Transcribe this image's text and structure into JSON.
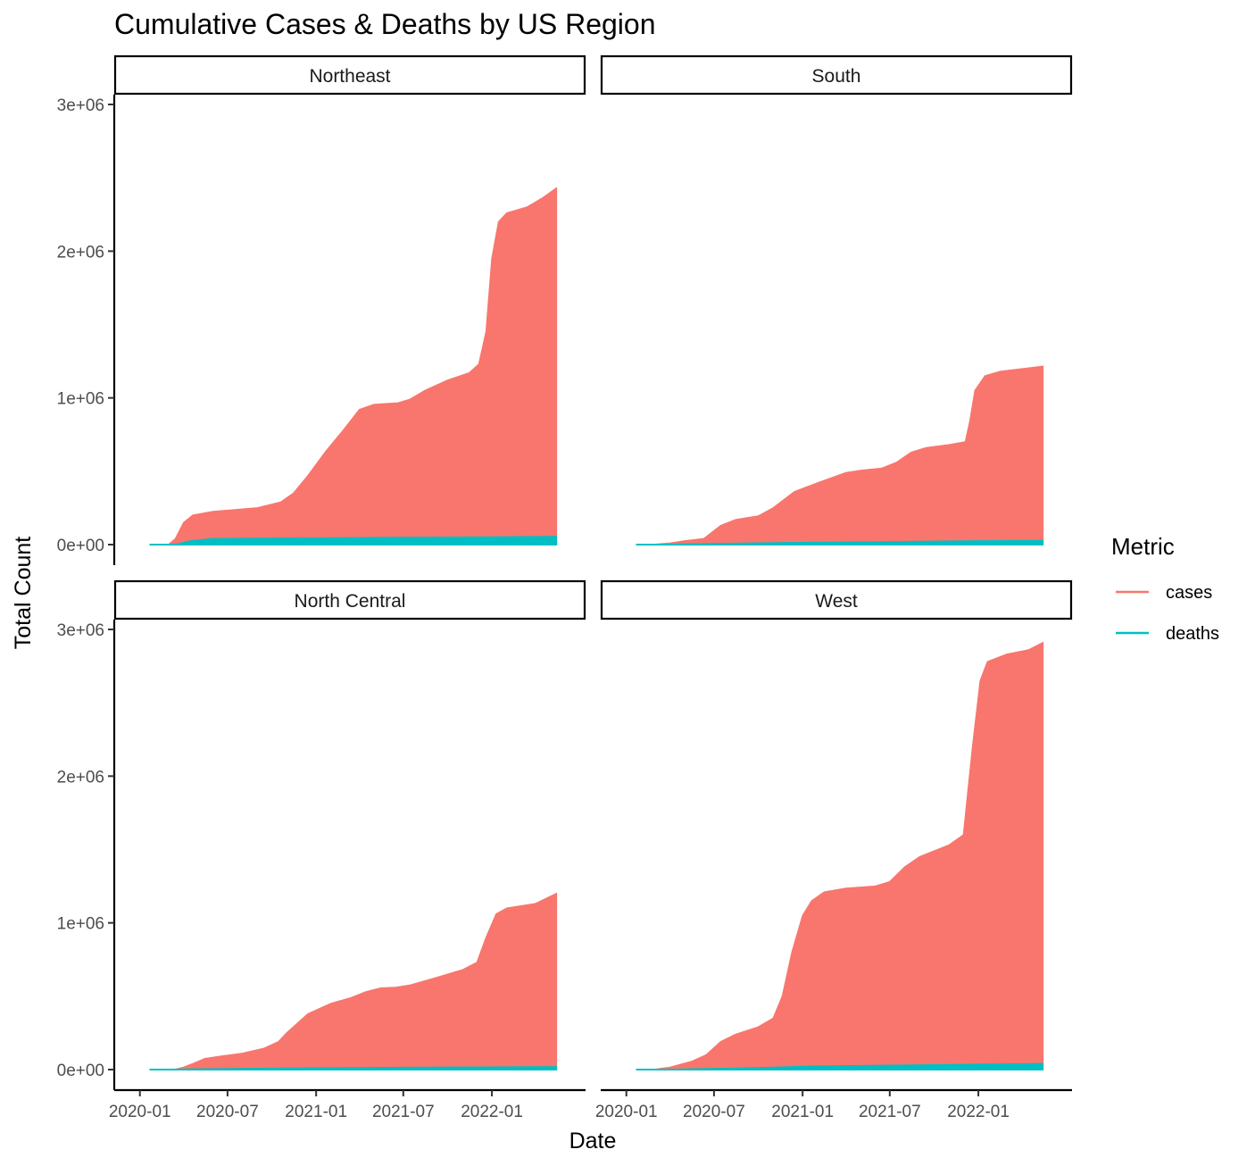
{
  "chart_data": {
    "type": "area",
    "title": "Cumulative Cases & Deaths by US Region",
    "xlabel": "Date",
    "ylabel": "Total Count",
    "x_ticks": [
      "2020-01",
      "2020-07",
      "2021-01",
      "2021-07",
      "2022-01"
    ],
    "y_ticks": [
      "0e+00",
      "1e+06",
      "2e+06",
      "3e+06"
    ],
    "ylim": [
      0,
      3000000
    ],
    "xlim": [
      "2019-12-01",
      "2022-05-31"
    ],
    "legend": {
      "title": "Metric",
      "position": "right",
      "items": [
        {
          "label": "cases",
          "color": "#F8766D"
        },
        {
          "label": "deaths",
          "color": "#00BFC4"
        }
      ]
    },
    "panels": [
      {
        "name": "Northeast",
        "series": [
          {
            "name": "cases",
            "color": "#F8766D",
            "points": [
              [
                "2020-01-21",
                0
              ],
              [
                "2020-03-01",
                1000
              ],
              [
                "2020-03-15",
                40000
              ],
              [
                "2020-04-01",
                150000
              ],
              [
                "2020-04-20",
                200000
              ],
              [
                "2020-06-01",
                225000
              ],
              [
                "2020-09-01",
                250000
              ],
              [
                "2020-10-20",
                290000
              ],
              [
                "2020-11-15",
                350000
              ],
              [
                "2020-12-15",
                470000
              ],
              [
                "2021-01-20",
                630000
              ],
              [
                "2021-03-01",
                790000
              ],
              [
                "2021-04-01",
                920000
              ],
              [
                "2021-05-01",
                955000
              ],
              [
                "2021-06-20",
                965000
              ],
              [
                "2021-07-15",
                990000
              ],
              [
                "2021-08-15",
                1050000
              ],
              [
                "2021-10-01",
                1120000
              ],
              [
                "2021-11-15",
                1170000
              ],
              [
                "2021-12-05",
                1230000
              ],
              [
                "2021-12-20",
                1450000
              ],
              [
                "2022-01-01",
                1950000
              ],
              [
                "2022-01-15",
                2200000
              ],
              [
                "2022-02-01",
                2260000
              ],
              [
                "2022-03-15",
                2300000
              ],
              [
                "2022-04-15",
                2360000
              ],
              [
                "2022-05-15",
                2430000
              ]
            ]
          },
          {
            "name": "deaths",
            "color": "#00BFC4",
            "points": [
              [
                "2020-01-21",
                0
              ],
              [
                "2020-03-15",
                500
              ],
              [
                "2020-04-15",
                25000
              ],
              [
                "2020-06-01",
                40000
              ],
              [
                "2020-12-01",
                44000
              ],
              [
                "2021-06-01",
                48000
              ],
              [
                "2022-01-01",
                52000
              ],
              [
                "2022-05-15",
                55000
              ]
            ]
          }
        ]
      },
      {
        "name": "South",
        "series": [
          {
            "name": "cases",
            "color": "#F8766D",
            "points": [
              [
                "2020-01-21",
                0
              ],
              [
                "2020-03-01",
                1000
              ],
              [
                "2020-04-01",
                10000
              ],
              [
                "2020-05-01",
                25000
              ],
              [
                "2020-06-10",
                40000
              ],
              [
                "2020-07-15",
                130000
              ],
              [
                "2020-08-15",
                170000
              ],
              [
                "2020-10-01",
                195000
              ],
              [
                "2020-11-01",
                250000
              ],
              [
                "2020-12-15",
                360000
              ],
              [
                "2021-02-01",
                420000
              ],
              [
                "2021-04-01",
                490000
              ],
              [
                "2021-05-01",
                505000
              ],
              [
                "2021-06-15",
                520000
              ],
              [
                "2021-07-15",
                560000
              ],
              [
                "2021-08-15",
                630000
              ],
              [
                "2021-09-15",
                660000
              ],
              [
                "2021-11-01",
                680000
              ],
              [
                "2021-12-05",
                700000
              ],
              [
                "2021-12-15",
                850000
              ],
              [
                "2021-12-25",
                1050000
              ],
              [
                "2022-01-15",
                1150000
              ],
              [
                "2022-02-15",
                1180000
              ],
              [
                "2022-05-15",
                1215000
              ]
            ]
          },
          {
            "name": "deaths",
            "color": "#00BFC4",
            "points": [
              [
                "2020-01-21",
                0
              ],
              [
                "2020-04-01",
                2000
              ],
              [
                "2020-08-01",
                8000
              ],
              [
                "2021-01-01",
                14000
              ],
              [
                "2021-08-01",
                20000
              ],
              [
                "2022-01-01",
                25000
              ],
              [
                "2022-05-15",
                28000
              ]
            ]
          }
        ]
      },
      {
        "name": "North Central",
        "series": [
          {
            "name": "cases",
            "color": "#F8766D",
            "points": [
              [
                "2020-01-21",
                0
              ],
              [
                "2020-03-15",
                2000
              ],
              [
                "2020-04-01",
                15000
              ],
              [
                "2020-04-20",
                40000
              ],
              [
                "2020-05-15",
                75000
              ],
              [
                "2020-06-15",
                90000
              ],
              [
                "2020-08-01",
                110000
              ],
              [
                "2020-09-15",
                145000
              ],
              [
                "2020-10-15",
                190000
              ],
              [
                "2020-11-01",
                250000
              ],
              [
                "2020-12-15",
                380000
              ],
              [
                "2021-02-01",
                450000
              ],
              [
                "2021-03-15",
                490000
              ],
              [
                "2021-04-15",
                530000
              ],
              [
                "2021-05-15",
                555000
              ],
              [
                "2021-06-15",
                560000
              ],
              [
                "2021-07-15",
                575000
              ],
              [
                "2021-09-01",
                620000
              ],
              [
                "2021-11-01",
                680000
              ],
              [
                "2021-12-01",
                730000
              ],
              [
                "2021-12-20",
                900000
              ],
              [
                "2022-01-10",
                1060000
              ],
              [
                "2022-02-01",
                1100000
              ],
              [
                "2022-04-01",
                1130000
              ],
              [
                "2022-05-15",
                1200000
              ]
            ]
          },
          {
            "name": "deaths",
            "color": "#00BFC4",
            "points": [
              [
                "2020-01-21",
                0
              ],
              [
                "2020-04-15",
                3000
              ],
              [
                "2020-12-01",
                10000
              ],
              [
                "2021-06-01",
                14000
              ],
              [
                "2022-01-01",
                17000
              ],
              [
                "2022-05-15",
                19000
              ]
            ]
          }
        ]
      },
      {
        "name": "West",
        "series": [
          {
            "name": "cases",
            "color": "#F8766D",
            "points": [
              [
                "2020-01-21",
                0
              ],
              [
                "2020-03-01",
                2000
              ],
              [
                "2020-04-01",
                15000
              ],
              [
                "2020-05-15",
                55000
              ],
              [
                "2020-06-15",
                100000
              ],
              [
                "2020-07-15",
                190000
              ],
              [
                "2020-08-15",
                240000
              ],
              [
                "2020-10-01",
                290000
              ],
              [
                "2020-11-01",
                350000
              ],
              [
                "2020-11-20",
                500000
              ],
              [
                "2020-12-10",
                800000
              ],
              [
                "2021-01-01",
                1050000
              ],
              [
                "2021-01-20",
                1150000
              ],
              [
                "2021-02-15",
                1210000
              ],
              [
                "2021-04-01",
                1235000
              ],
              [
                "2021-06-01",
                1250000
              ],
              [
                "2021-07-01",
                1280000
              ],
              [
                "2021-08-01",
                1380000
              ],
              [
                "2021-09-01",
                1450000
              ],
              [
                "2021-11-01",
                1530000
              ],
              [
                "2021-12-01",
                1600000
              ],
              [
                "2021-12-20",
                2200000
              ],
              [
                "2022-01-05",
                2650000
              ],
              [
                "2022-01-20",
                2780000
              ],
              [
                "2022-03-01",
                2830000
              ],
              [
                "2022-04-15",
                2860000
              ],
              [
                "2022-05-15",
                2910000
              ]
            ]
          },
          {
            "name": "deaths",
            "color": "#00BFC4",
            "points": [
              [
                "2020-01-21",
                0
              ],
              [
                "2020-04-15",
                2000
              ],
              [
                "2020-09-01",
                10000
              ],
              [
                "2021-02-01",
                24000
              ],
              [
                "2021-08-01",
                30000
              ],
              [
                "2022-01-01",
                36000
              ],
              [
                "2022-05-15",
                40000
              ]
            ]
          }
        ]
      }
    ]
  }
}
